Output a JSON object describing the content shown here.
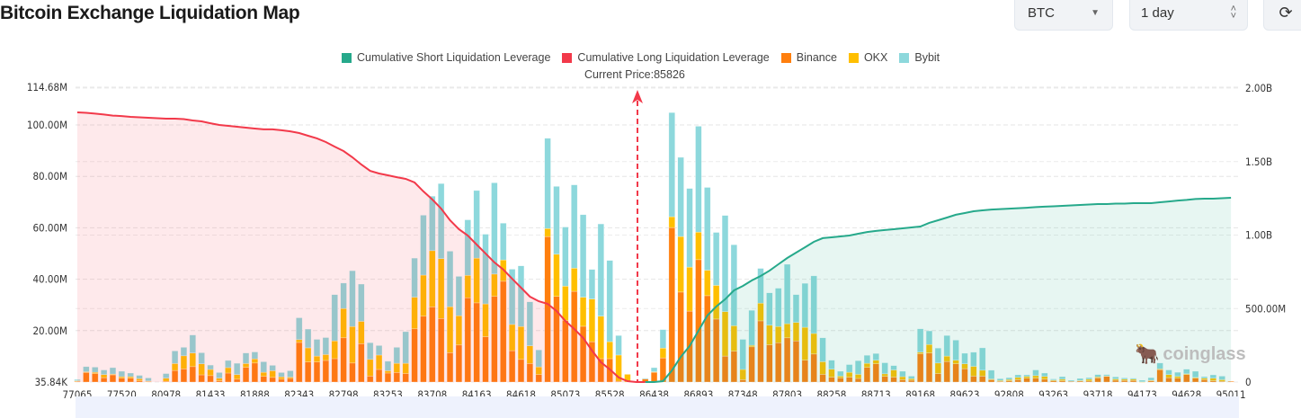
{
  "header": {
    "title": "Bitcoin Exchange Liquidation Map",
    "symbol_select": "BTC",
    "range_select": "1 day",
    "refresh_icon": "refresh-icon"
  },
  "colors": {
    "short": "#26a98b",
    "long": "#f2394a",
    "binance": "#ff7f0e",
    "okx": "#ffbf00",
    "bybit": "#8dd8dc"
  },
  "chart_data": {
    "type": "bar",
    "stacked": true,
    "legend": {
      "position": "top",
      "items": [
        "Cumulative Short Liquidation Leverage",
        "Cumulative Long Liquidation Leverage",
        "Binance",
        "OKX",
        "Bybit"
      ]
    },
    "current_price_label": "Current Price:85826",
    "current_price": 85826,
    "x_tick_labels": [
      "77065",
      "77520",
      "80978",
      "81433",
      "81888",
      "82343",
      "82798",
      "83253",
      "83708",
      "84163",
      "84618",
      "85073",
      "85528",
      "86438",
      "86893",
      "87348",
      "87803",
      "88258",
      "88713",
      "89168",
      "89623",
      "92808",
      "93263",
      "93718",
      "94173",
      "94628",
      "95011"
    ],
    "y_left": {
      "ticks": [
        "35.84K",
        "20.00M",
        "40.00M",
        "60.00M",
        "80.00M",
        "100.00M",
        "114.68M"
      ],
      "min": 0,
      "max": 114.68,
      "unit": "M"
    },
    "y_right": {
      "ticks": [
        "0",
        "500.00M",
        "1.00B",
        "1.50B",
        "2.00B"
      ],
      "min": 0,
      "max": 2.0,
      "unit": "B"
    },
    "grid": true,
    "series_order": [
      "Binance",
      "OKX",
      "Bybit"
    ],
    "bars": [
      [
        0.3,
        0.2,
        0.5
      ],
      [
        3.7,
        0.3,
        2
      ],
      [
        3.3,
        0.5,
        2
      ],
      [
        1.7,
        1.2,
        1.8
      ],
      [
        2.8,
        0.3,
        2.5
      ],
      [
        1.5,
        0.6,
        2.1
      ],
      [
        1.5,
        0.6,
        1.4
      ],
      [
        0.5,
        0.8,
        1.3
      ],
      [
        0.2,
        0.2,
        1.2
      ],
      [
        0,
        0,
        0
      ],
      [
        0.3,
        1.2,
        1.8
      ],
      [
        4.5,
        2.7,
        4.9
      ],
      [
        5.1,
        5.1,
        3.3
      ],
      [
        6,
        5.3,
        7
      ],
      [
        2.8,
        4.3,
        4.3
      ],
      [
        2.5,
        2.4,
        1.7
      ],
      [
        0.5,
        1,
        2.2
      ],
      [
        3.5,
        2.1,
        2.8
      ],
      [
        1.1,
        1.8,
        4.4
      ],
      [
        5.7,
        1.5,
        4.1
      ],
      [
        7.4,
        1.6,
        2.7
      ],
      [
        2.2,
        1.6,
        4.1
      ],
      [
        1.8,
        2.6,
        2.1
      ],
      [
        1.1,
        0.9,
        1.7
      ],
      [
        1.4,
        0.5,
        2.5
      ],
      [
        15.4,
        1.1,
        8.5
      ],
      [
        7.8,
        5.5,
        7.3
      ],
      [
        7.8,
        2.3,
        6.5
      ],
      [
        8.4,
        2.3,
        6.6
      ],
      [
        9.1,
        6.9,
        18
      ],
      [
        17.2,
        11.4,
        9.9
      ],
      [
        7.4,
        14.2,
        21.7
      ],
      [
        14.9,
        8.7,
        14.5
      ],
      [
        2.3,
        6.5,
        6.5
      ],
      [
        4.9,
        5.6,
        3.7
      ],
      [
        3.5,
        0.9,
        3.7
      ],
      [
        3.7,
        3.6,
        6.2
      ],
      [
        3.3,
        4,
        12.3
      ],
      [
        20.7,
        12.3,
        15.2
      ],
      [
        25.6,
        16,
        23.3
      ],
      [
        29.2,
        21.9,
        21.2
      ],
      [
        24.7,
        23.3,
        29.2
      ],
      [
        11.4,
        17.9,
        21.6
      ],
      [
        14.4,
        11.4,
        15.3
      ],
      [
        32.8,
        8.7,
        21.6
      ],
      [
        30.8,
        17.4,
        26.3
      ],
      [
        17.6,
        12.8,
        27.1
      ],
      [
        33.3,
        8.7,
        35.5
      ],
      [
        39.2,
        8.3,
        14.3
      ],
      [
        12.2,
        10.2,
        21.5
      ],
      [
        8.8,
        12.8,
        23.6
      ],
      [
        7.2,
        6.9,
        17.1
      ],
      [
        2.9,
        3,
        6.6
      ],
      [
        56.6,
        3.1,
        35.1
      ],
      [
        33.3,
        16.4,
        26.4
      ],
      [
        24,
        13.3,
        23
      ],
      [
        35.3,
        9,
        32.4
      ],
      [
        21.7,
        11.3,
        32.1
      ],
      [
        15.7,
        16.6,
        11.5
      ],
      [
        9.1,
        16.5,
        35.9
      ],
      [
        9.1,
        6.6,
        31.6
      ],
      [
        0.3,
        10.2,
        7.6
      ],
      [
        0,
        3,
        0
      ],
      [
        0,
        0,
        0
      ],
      [
        1.2,
        0,
        0.3
      ],
      [
        3.8,
        0.2,
        1.6
      ],
      [
        9.4,
        3.8,
        7.2
      ],
      [
        60.1,
        4.2,
        40.5
      ],
      [
        35,
        21.6,
        30.8
      ],
      [
        27.6,
        17.1,
        30.6
      ],
      [
        47.6,
        10.7,
        41.2
      ],
      [
        33.6,
        9.9,
        32.2
      ],
      [
        24.5,
        13.1,
        20.6
      ],
      [
        10.1,
        17.3,
        37.4
      ],
      [
        12,
        9.9,
        31.5
      ],
      [
        0.9,
        4,
        11.7
      ],
      [
        13.7,
        0.6,
        13.6
      ],
      [
        23.8,
        6.9,
        13.5
      ],
      [
        14.5,
        7.6,
        12.6
      ],
      [
        15.3,
        6.3,
        14.9
      ],
      [
        17.2,
        5.5,
        23.1
      ],
      [
        16,
        7.2,
        10.8
      ],
      [
        8.5,
        12.8,
        17.1
      ],
      [
        10.9,
        8,
        22.4
      ],
      [
        3,
        4.9,
        9.3
      ],
      [
        1.9,
        3.1,
        3.5
      ],
      [
        1.6,
        0.7,
        1.9
      ],
      [
        1.9,
        1.9,
        3
      ],
      [
        1.4,
        1.6,
        5.3
      ],
      [
        5.7,
        1.6,
        3.1
      ],
      [
        7.1,
        1.4,
        2.6
      ],
      [
        2.2,
        1,
        4.3
      ],
      [
        1.9,
        2.8,
        1.7
      ],
      [
        0.9,
        1.2,
        2.1
      ],
      [
        0.7,
        0.6,
        1
      ],
      [
        11,
        0.6,
        9.1
      ],
      [
        11.3,
        3.3,
        5.3
      ],
      [
        3.3,
        4.1,
        5.8
      ],
      [
        8,
        2.1,
        8
      ],
      [
        7.1,
        1.4,
        7.8
      ],
      [
        5.2,
        1.9,
        4.1
      ],
      [
        2.3,
        3.8,
        5.5
      ],
      [
        2.3,
        2.3,
        8.7
      ],
      [
        0.9,
        0.3,
        3.4
      ],
      [
        0.3,
        0.3,
        0.7
      ],
      [
        0.5,
        0.5,
        0.7
      ],
      [
        0.9,
        0.9,
        1
      ],
      [
        1.5,
        0.7,
        0.6
      ],
      [
        1.5,
        1,
        2.2
      ],
      [
        1.1,
        1.1,
        1.3
      ],
      [
        0.5,
        0.3,
        0.4
      ],
      [
        0.5,
        0.6,
        1
      ],
      [
        0.3,
        0,
        0.4
      ],
      [
        0.4,
        0.2,
        0.8
      ],
      [
        0.4,
        0.7,
        0.6
      ],
      [
        1.6,
        0.4,
        0.9
      ],
      [
        2.2,
        0.2,
        0.5
      ],
      [
        0.7,
        0.5,
        0.8
      ],
      [
        0.6,
        0.5,
        0.5
      ],
      [
        0.6,
        0.5,
        0.4
      ],
      [
        0,
        0.1,
        0.6
      ],
      [
        0.5,
        0.2,
        1
      ],
      [
        4.8,
        0.3,
        2.3
      ],
      [
        1.7,
        1.2,
        1.8
      ],
      [
        1.5,
        0.7,
        1.6
      ],
      [
        2.9,
        0.3,
        1.8
      ],
      [
        1.5,
        0.3,
        2.4
      ],
      [
        0.9,
        0.6,
        0.6
      ],
      [
        0.5,
        1,
        1.3
      ],
      [
        0.3,
        0.6,
        1.4
      ],
      [
        0.3,
        0,
        0
      ]
    ],
    "cumulative_long_B": [
      1.835,
      1.832,
      1.826,
      1.82,
      1.813,
      1.81,
      1.804,
      1.801,
      1.798,
      1.795,
      1.792,
      1.792,
      1.789,
      1.78,
      1.774,
      1.761,
      1.749,
      1.743,
      1.737,
      1.731,
      1.725,
      1.719,
      1.719,
      1.713,
      1.706,
      1.694,
      1.676,
      1.658,
      1.633,
      1.602,
      1.572,
      1.529,
      1.48,
      1.437,
      1.419,
      1.407,
      1.394,
      1.382,
      1.358,
      1.297,
      1.242,
      1.18,
      1.101,
      1.04,
      0.997,
      0.936,
      0.875,
      0.814,
      0.765,
      0.703,
      0.642,
      0.581,
      0.55,
      0.532,
      0.483,
      0.416,
      0.361,
      0.3,
      0.214,
      0.135,
      0.086,
      0.031,
      0.006,
      0,
      0,
      null,
      null,
      null,
      null,
      null,
      null,
      null,
      null,
      null,
      null,
      null,
      null,
      null,
      null,
      null,
      null,
      null,
      null,
      null,
      null,
      null,
      null,
      null,
      null,
      null,
      null,
      null,
      null,
      null,
      null,
      null,
      null,
      null,
      null,
      null,
      null,
      null,
      null,
      null,
      null,
      null,
      null,
      null,
      null,
      null,
      null,
      null,
      null,
      null,
      null,
      null,
      null,
      null,
      null,
      null,
      null,
      null,
      null,
      null,
      null,
      null,
      null,
      null,
      null,
      null,
      null
    ],
    "cumulative_short_B": [
      null,
      null,
      null,
      null,
      null,
      null,
      null,
      null,
      null,
      null,
      null,
      null,
      null,
      null,
      null,
      null,
      null,
      null,
      null,
      null,
      null,
      null,
      null,
      null,
      null,
      null,
      null,
      null,
      null,
      null,
      null,
      null,
      null,
      null,
      null,
      null,
      null,
      null,
      null,
      null,
      null,
      null,
      null,
      null,
      null,
      null,
      null,
      null,
      null,
      null,
      null,
      null,
      null,
      null,
      null,
      null,
      null,
      null,
      null,
      null,
      null,
      null,
      null,
      null,
      0,
      0,
      0.006,
      0.079,
      0.171,
      0.245,
      0.349,
      0.453,
      0.514,
      0.563,
      0.624,
      0.654,
      0.691,
      0.722,
      0.758,
      0.801,
      0.844,
      0.881,
      0.917,
      0.954,
      0.979,
      0.985,
      0.991,
      0.997,
      1.009,
      1.021,
      1.028,
      1.034,
      1.04,
      1.046,
      1.052,
      1.058,
      1.083,
      1.101,
      1.119,
      1.138,
      1.15,
      1.162,
      1.168,
      1.174,
      1.177,
      1.18,
      1.183,
      1.186,
      1.19,
      1.193,
      1.196,
      1.199,
      1.202,
      1.205,
      1.208,
      1.211,
      1.211,
      1.214,
      1.214,
      1.217,
      1.217,
      1.217,
      1.223,
      1.229,
      1.235,
      1.239,
      1.245,
      1.248,
      1.248,
      1.251,
      1.254
    ]
  },
  "watermark": "coinglass"
}
